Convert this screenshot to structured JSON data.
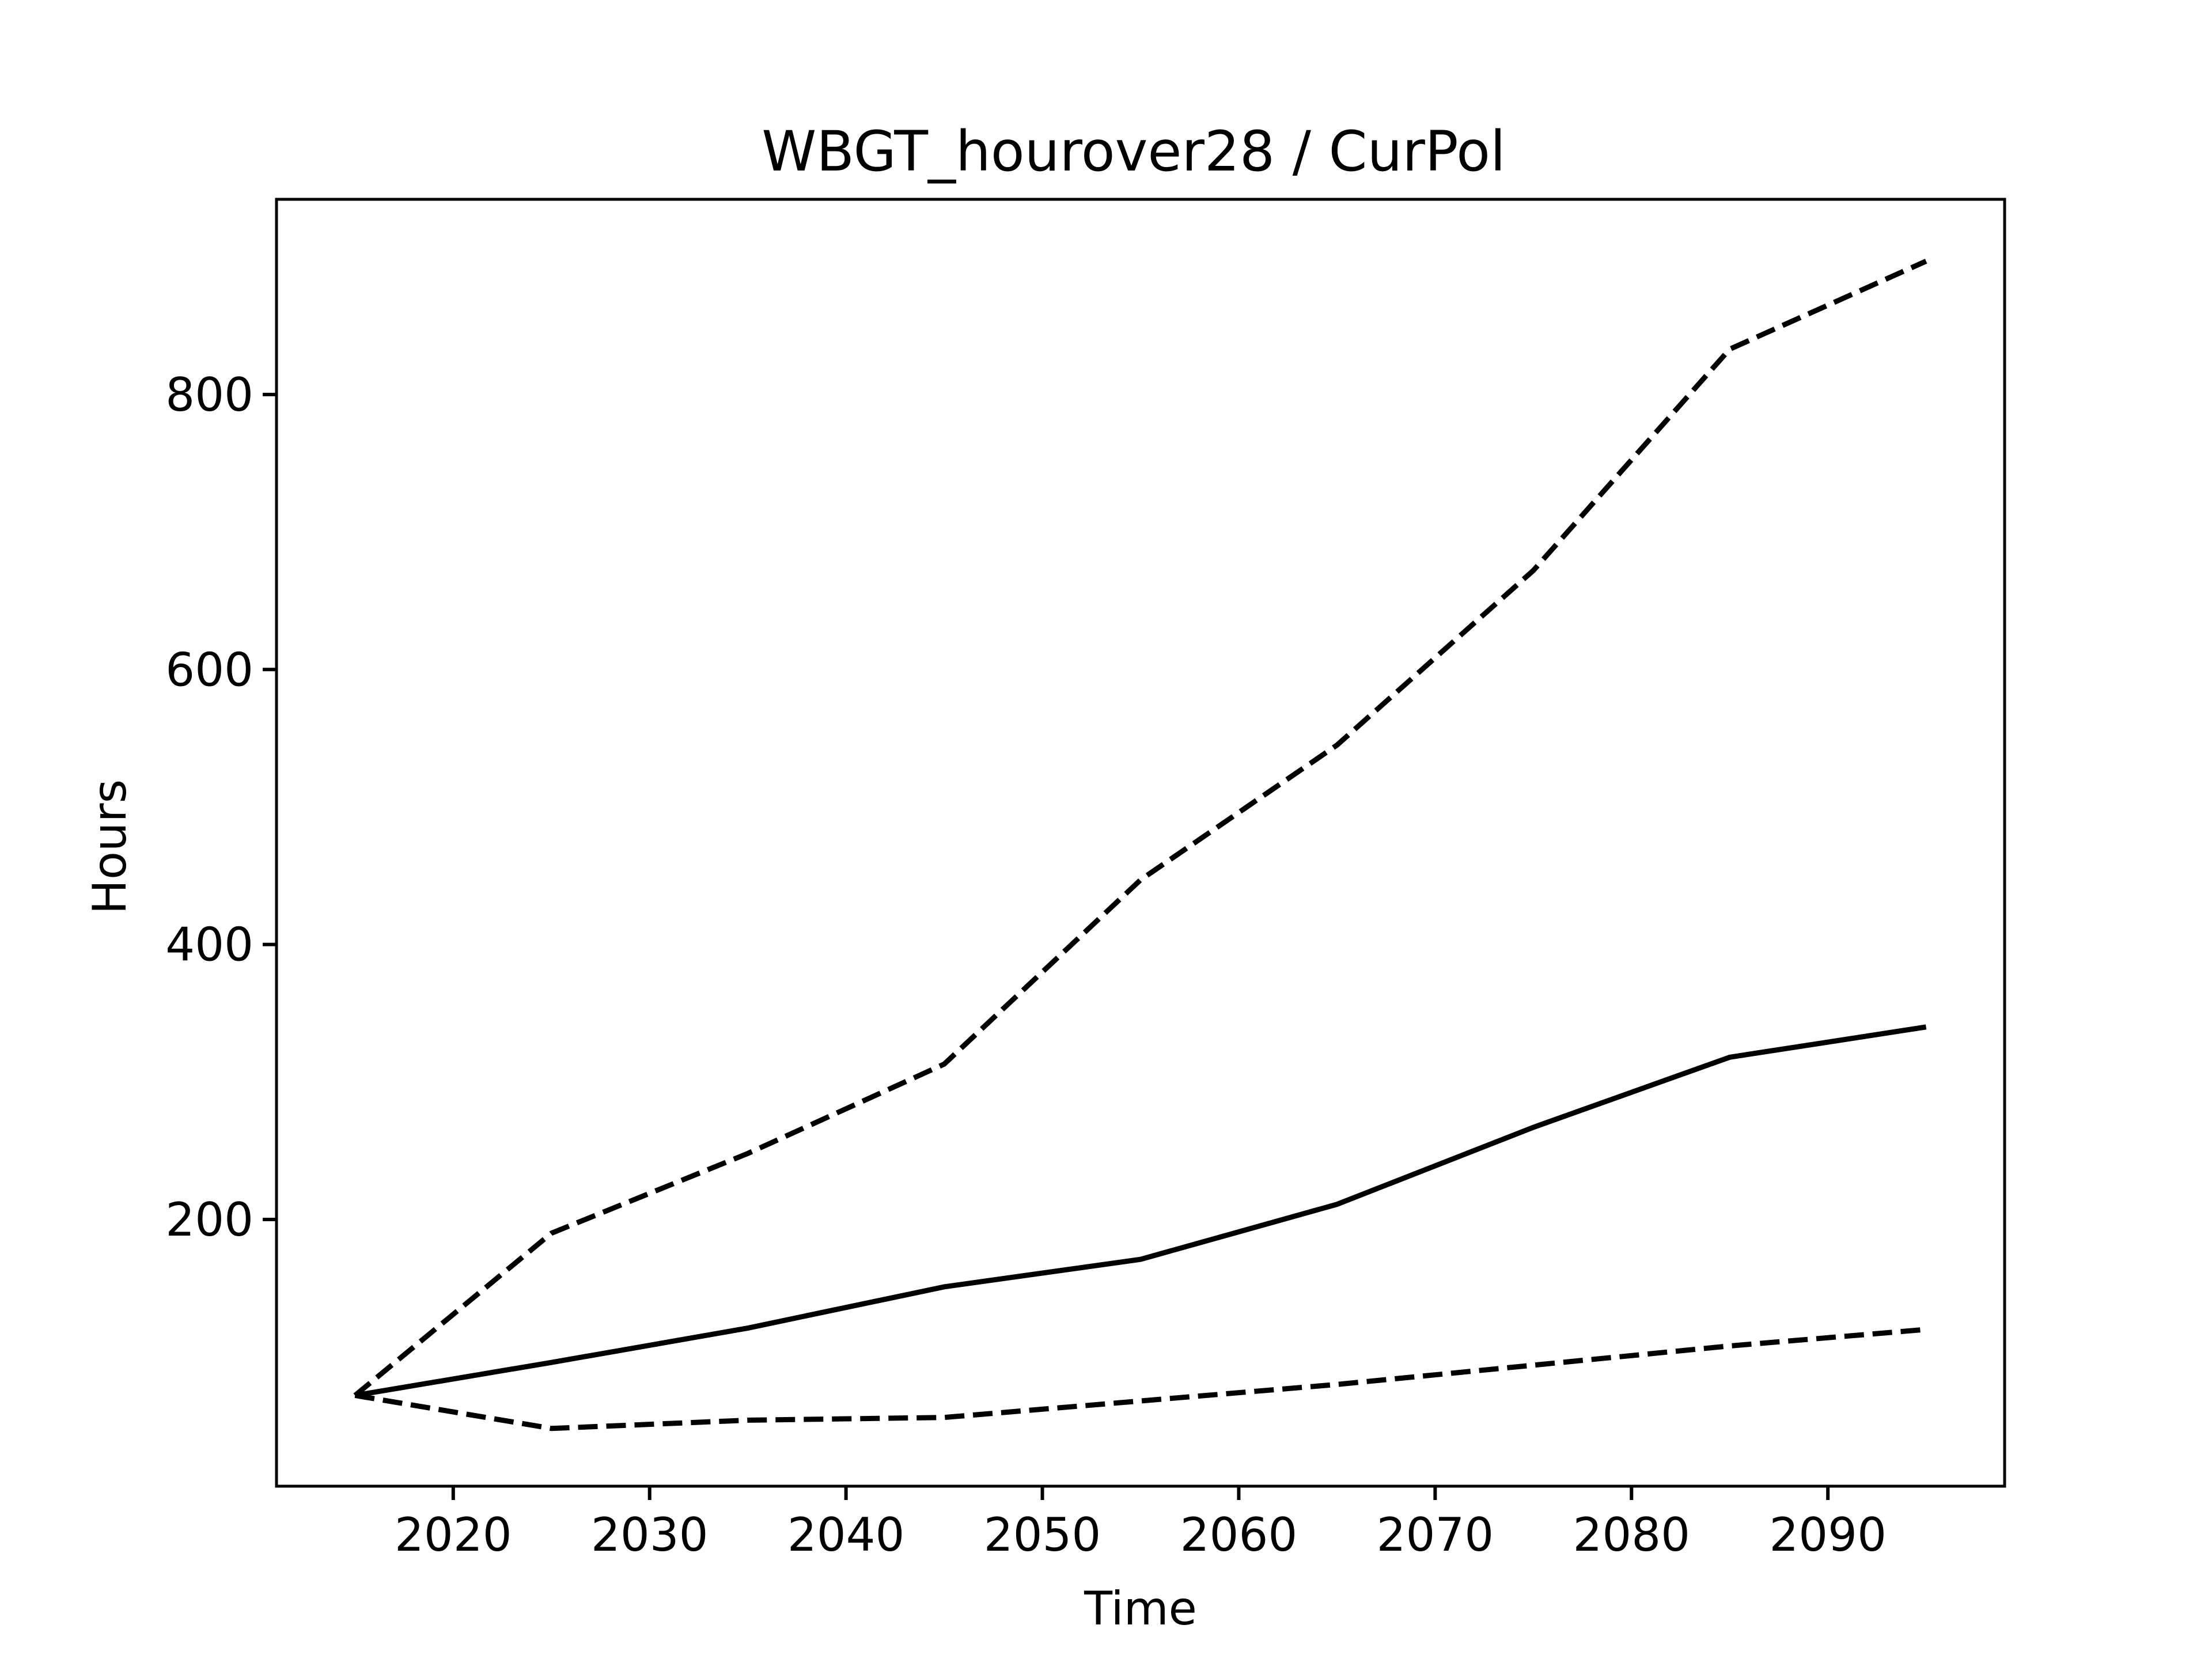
{
  "chart_data": {
    "type": "line",
    "title": "WBGT_hourover28 / CurPol",
    "xlabel": "Time",
    "ylabel": "Hours",
    "xlim": [
      2011,
      2099
    ],
    "ylim": [
      6,
      942
    ],
    "xticks": [
      "2020",
      "2030",
      "2040",
      "2050",
      "2060",
      "2070",
      "2080",
      "2090"
    ],
    "yticks": [
      "200",
      "400",
      "600",
      "800"
    ],
    "grid": false,
    "x": [
      2015,
      2025,
      2035,
      2045,
      2055,
      2065,
      2075,
      2085,
      2095
    ],
    "series": [
      {
        "style": "dashed",
        "color": "#000000",
        "values": [
          72,
          190,
          248,
          313,
          447,
          545,
          672,
          833,
          897
        ]
      },
      {
        "style": "solid",
        "color": "#000000",
        "values": [
          72,
          96,
          121,
          151,
          171,
          211,
          267,
          318,
          340
        ]
      },
      {
        "style": "dashed",
        "color": "#000000",
        "values": [
          72,
          48,
          54,
          56,
          68,
          80,
          94,
          108,
          120
        ]
      }
    ]
  }
}
